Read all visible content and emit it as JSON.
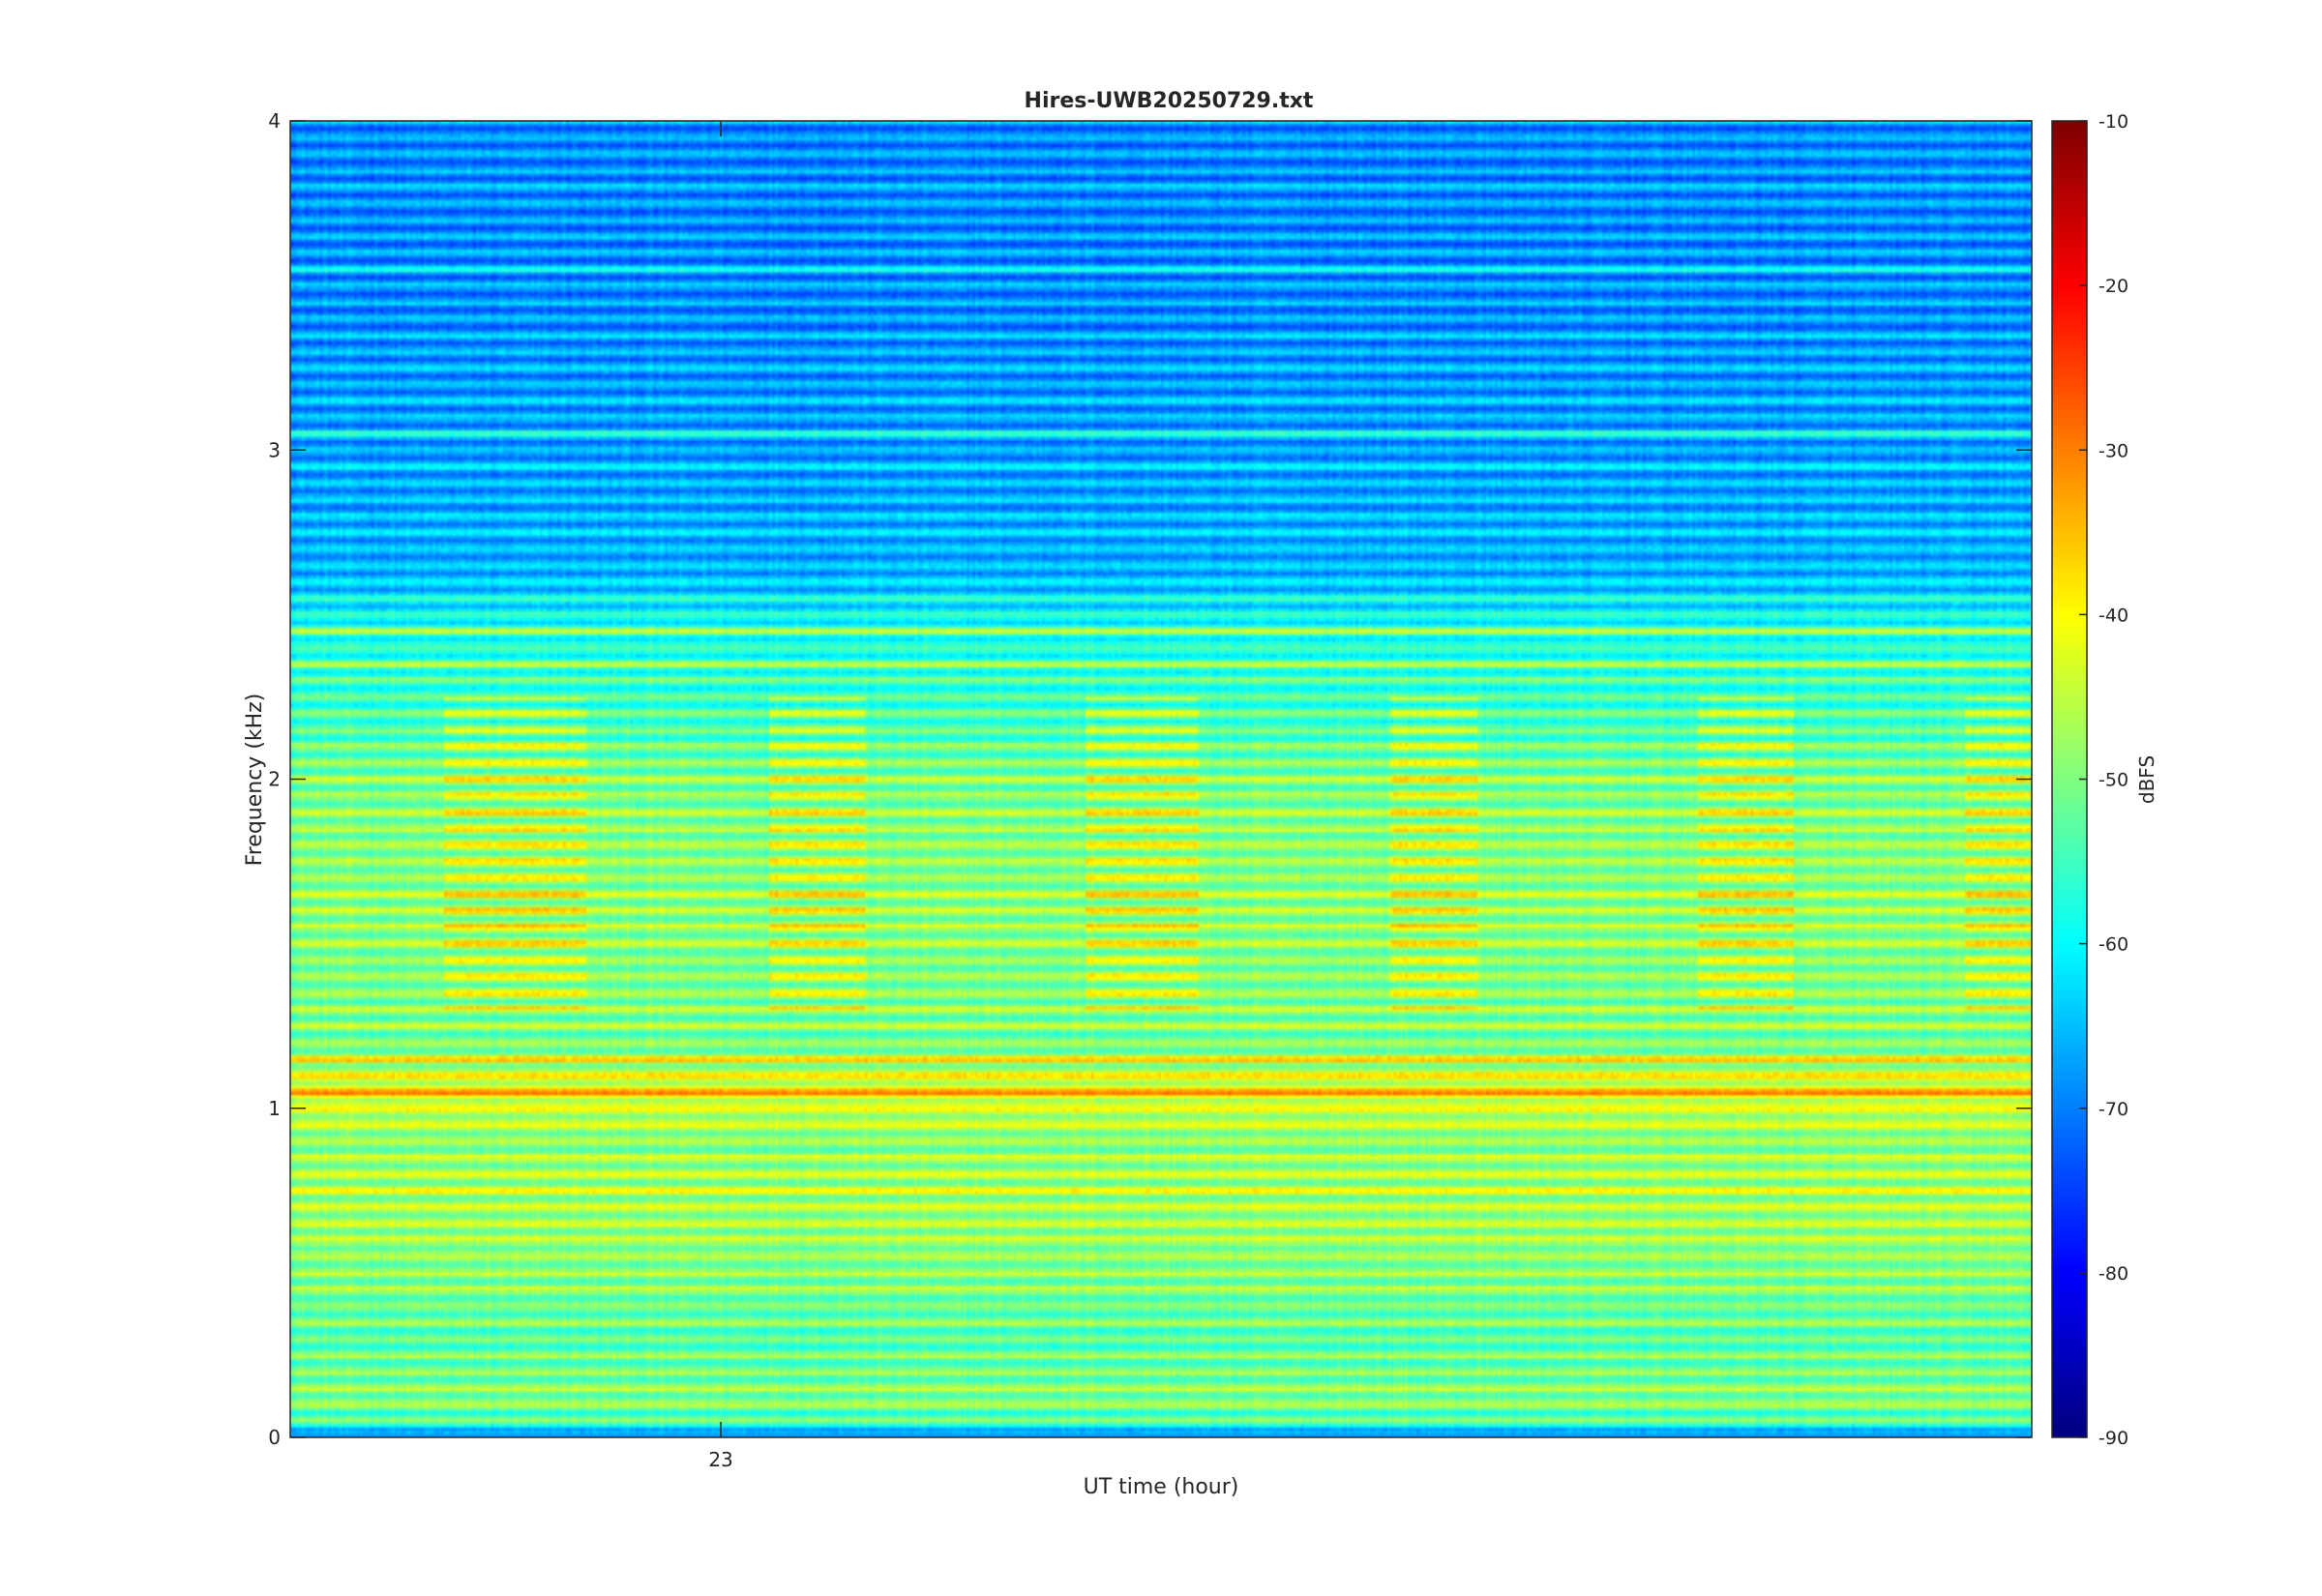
{
  "chart_data": {
    "type": "heatmap",
    "title": "Hires-UWB20250729.txt",
    "xlabel": "UT time (hour)",
    "ylabel": "Frequency (kHz)",
    "x_ticks": [
      23
    ],
    "x_tick_labels": [
      "23"
    ],
    "xlim": [
      22.55,
      24.37
    ],
    "ylim": [
      0,
      4
    ],
    "y_ticks": [
      0,
      1,
      2,
      3,
      4
    ],
    "y_tick_labels": [
      "0",
      "1",
      "2",
      "3",
      "4"
    ],
    "colorbar": {
      "label": "dBFS",
      "limits": [
        -90,
        -10
      ],
      "ticks": [
        -90,
        -80,
        -70,
        -60,
        -50,
        -40,
        -30,
        -20,
        -10
      ],
      "tick_labels": [
        "-90",
        "-80",
        "-70",
        "-60",
        "-50",
        "-40",
        "-30",
        "-20",
        "-10"
      ],
      "colormap": "jet"
    },
    "harmonic_spacing_khz": 0.05,
    "band_floor_dbfs": [
      [
        0.0,
        -64
      ],
      [
        0.1,
        -46
      ],
      [
        0.3,
        -50
      ],
      [
        0.5,
        -46
      ],
      [
        0.7,
        -44
      ],
      [
        0.9,
        -46
      ],
      [
        1.05,
        -38
      ],
      [
        1.2,
        -48
      ],
      [
        1.5,
        -46
      ],
      [
        1.8,
        -46
      ],
      [
        2.0,
        -48
      ],
      [
        2.2,
        -52
      ],
      [
        2.45,
        -54
      ],
      [
        2.6,
        -62
      ],
      [
        3.0,
        -64
      ],
      [
        3.5,
        -66
      ],
      [
        4.0,
        -66
      ]
    ],
    "bright_lines_khz": [
      0.05,
      0.75,
      1.05,
      1.15,
      2.35,
      2.45,
      3.05,
      3.55
    ],
    "active_hours": [
      [
        22.71,
        22.86
      ],
      [
        23.05,
        23.15
      ],
      [
        23.38,
        23.5
      ],
      [
        23.7,
        23.79
      ],
      [
        24.02,
        24.12
      ],
      [
        24.3,
        24.37
      ]
    ],
    "active_band_khz": [
      1.3,
      2.25
    ],
    "active_peak_dbfs": -33,
    "grid": false
  }
}
